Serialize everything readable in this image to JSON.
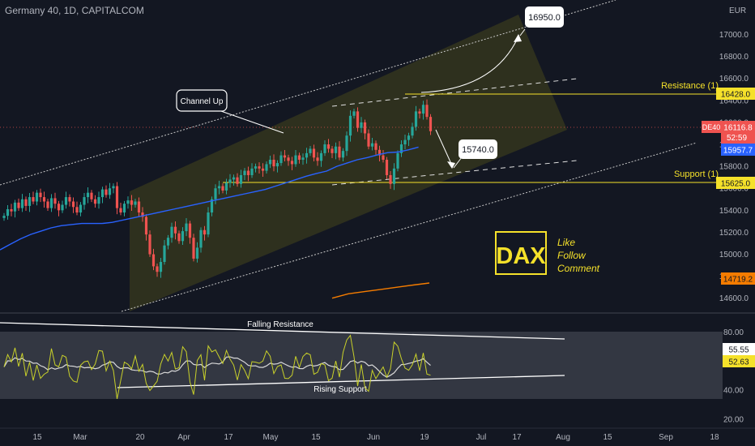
{
  "header": {
    "title": "Germany 40, 1D, CAPITALCOM",
    "currency": "EUR"
  },
  "chart_data": [
    {
      "type": "candlestick",
      "x_ticks": [
        "15",
        "Mar",
        "20",
        "Apr",
        "17",
        "May",
        "15",
        "Jun",
        "19",
        "Jul",
        "17",
        "Aug",
        "15",
        "Sep",
        "18"
      ],
      "y_ticks": [
        17000.0,
        16800.0,
        16600.0,
        16400.0,
        16200.0,
        16000.0,
        15800.0,
        15600.0,
        15400.0,
        15200.0,
        15000.0,
        14800.0,
        14600.0
      ],
      "ylim": [
        14480,
        17240
      ],
      "series": [
        {
          "close": [
            15350,
            15410,
            15390,
            15470,
            15420,
            15500,
            15440,
            15520,
            15480,
            15560,
            15520,
            15480,
            15420,
            15510,
            15460,
            15400,
            15450,
            15520,
            15480,
            15430,
            15380,
            15450,
            15520,
            15560,
            15500,
            15460,
            15520,
            15590,
            15540,
            15600,
            15620,
            15420,
            15380,
            15460,
            15490,
            15450,
            15480,
            15380,
            15340,
            15180,
            15000,
            14890,
            14840,
            14930,
            15080,
            15150,
            15250,
            15190,
            15120,
            15210,
            15280,
            15150,
            14960,
            15060,
            15220,
            15180,
            15380,
            15500,
            15600,
            15620,
            15580,
            15650,
            15680,
            15700,
            15640,
            15720,
            15760,
            15720,
            15780,
            15800,
            15780,
            15760,
            15820,
            15860,
            15800,
            15830,
            15900,
            15880,
            15850,
            15820,
            15900,
            15860,
            15880,
            15920,
            15960,
            15880,
            15850,
            15920,
            16000,
            15960,
            15920,
            15980,
            15880,
            15940,
            16080,
            16260,
            16300,
            16150,
            16200,
            16100,
            15980,
            16010,
            15950,
            15900,
            15860,
            15720,
            15640,
            15780,
            15920,
            16000,
            16040,
            16080,
            16160,
            16300,
            16280,
            16360,
            16250,
            16120
          ],
          "ma": [
            15040,
            15090,
            15140,
            15180,
            15210,
            15240,
            15260,
            15270,
            15280,
            15280,
            15280,
            15290,
            15310,
            15330,
            15350,
            15370,
            15390,
            15410,
            15430,
            15450,
            15470,
            15490,
            15510,
            15530,
            15550,
            15570,
            15590,
            15620,
            15650,
            15680,
            15710,
            15735,
            15757,
            15800,
            15830,
            15860,
            15880,
            15905,
            15925,
            15930,
            15950,
            15975
          ],
          "ma2": [
            14600,
            14640,
            14660,
            14680,
            14700,
            14720,
            14738
          ]
        }
      ]
    },
    {
      "type": "line",
      "ylim": [
        15,
        92
      ],
      "y_ticks": [
        80.0,
        60.0,
        40.0,
        20.0
      ]
    }
  ],
  "price_badges": {
    "symbol": "DE40",
    "last": "16116.8",
    "countdown": "52:59",
    "ma": "15957.7",
    "ma2": "14719.2",
    "levels": [
      "16428.0",
      "15625.0"
    ],
    "rsi_values": [
      "55.55",
      "52.63"
    ]
  },
  "labels": {
    "target_up": "16950.0",
    "target_down": "15740.0",
    "channel": "Channel Up",
    "resistance": "Resistance (1)",
    "support": "Support (1)",
    "falling_res": "Falling Resistance",
    "rising_sup": "Rising Support"
  },
  "promo": {
    "logo": "DAX",
    "line1": "Like",
    "line2": "Follow",
    "line3": "Comment"
  },
  "colors": {
    "bg": "#131722",
    "up": "#26a69a",
    "down": "#ef5350",
    "ma": "#2962ff",
    "ma2": "#f57c00",
    "gold": "#f5e12a",
    "channel": "#4a4a1f"
  }
}
